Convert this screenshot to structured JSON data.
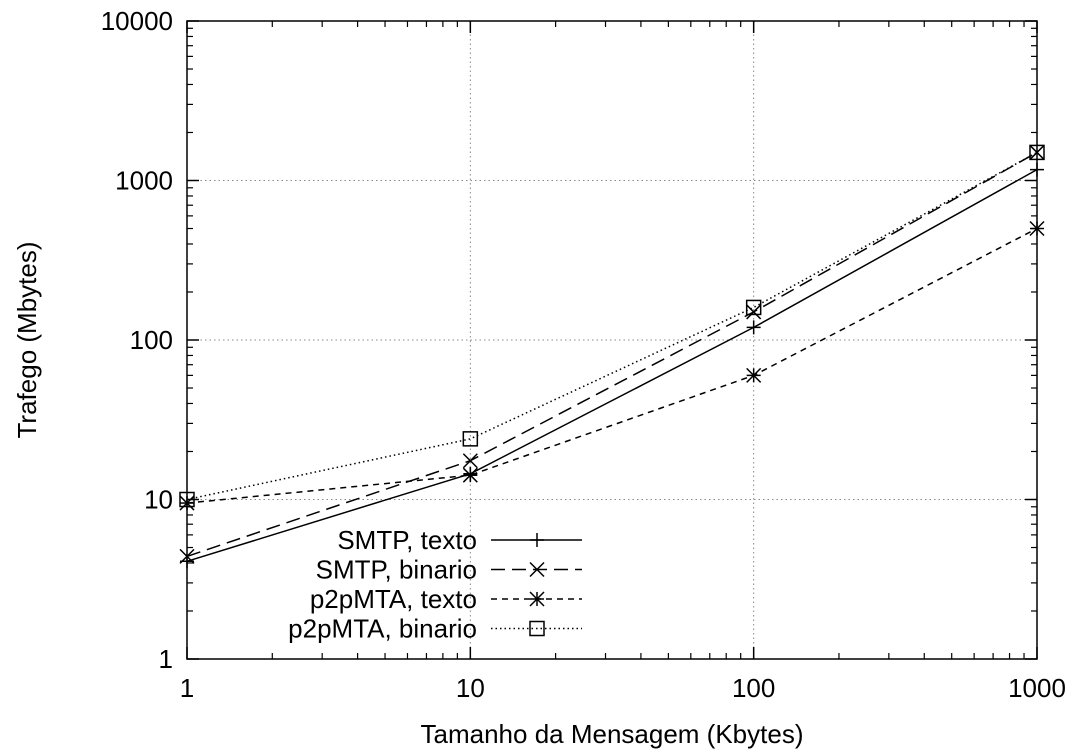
{
  "chart_data": {
    "type": "line",
    "xscale": "log",
    "yscale": "log",
    "xlim": [
      1,
      1000
    ],
    "ylim": [
      1,
      10000
    ],
    "xticks": [
      "1",
      "10",
      "100",
      "1000"
    ],
    "yticks": [
      "1",
      "10",
      "100",
      "1000",
      "10000"
    ],
    "xlabel": "Tamanho da Mensagem (Kbytes)",
    "ylabel": "Trafego (Mbytes)",
    "grid": true,
    "legend_position": "bottom-left",
    "x": [
      1,
      10,
      100,
      1000
    ],
    "series": [
      {
        "name": "SMTP, texto",
        "values": [
          4.1,
          14.5,
          120,
          1170
        ],
        "marker": "plus",
        "dash": "solid"
      },
      {
        "name": "SMTP, binario",
        "values": [
          4.4,
          17.5,
          150,
          1500
        ],
        "marker": "cross",
        "dash": "long-dash"
      },
      {
        "name": "p2pMTA, texto",
        "values": [
          9.5,
          14.2,
          60,
          500
        ],
        "marker": "star",
        "dash": "short-dash"
      },
      {
        "name": "p2pMTA, binario",
        "values": [
          10,
          24,
          160,
          1500
        ],
        "marker": "square",
        "dash": "dotted"
      }
    ]
  }
}
